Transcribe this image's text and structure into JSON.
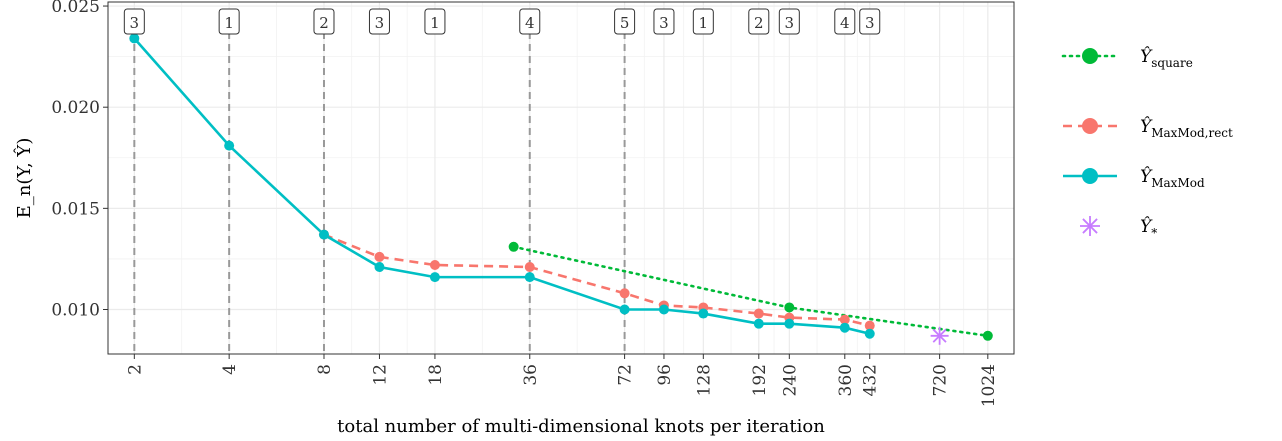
{
  "chart_data": {
    "type": "line",
    "xlabel": "total number of multi-dimensional knots per iteration",
    "ylabel": "E_n(Y, Ŷ)",
    "x_scale": "log",
    "x_ticks": [
      2,
      4,
      8,
      12,
      18,
      36,
      72,
      96,
      128,
      192,
      240,
      360,
      432,
      720,
      1024
    ],
    "ylim": [
      0.0078,
      0.0252
    ],
    "y_ticks": [
      0.01,
      0.015,
      0.02,
      0.025
    ],
    "y_tick_labels": [
      "0.010",
      "0.015",
      "0.020",
      "0.025"
    ],
    "grid": true,
    "legend_position": "right",
    "vlines": [
      2,
      4,
      8,
      36,
      72
    ],
    "box_annotations": [
      {
        "x": 2,
        "label": "3"
      },
      {
        "x": 4,
        "label": "1"
      },
      {
        "x": 8,
        "label": "2"
      },
      {
        "x": 12,
        "label": "3"
      },
      {
        "x": 18,
        "label": "1"
      },
      {
        "x": 36,
        "label": "4"
      },
      {
        "x": 72,
        "label": "5"
      },
      {
        "x": 96,
        "label": "3"
      },
      {
        "x": 128,
        "label": "1"
      },
      {
        "x": 192,
        "label": "2"
      },
      {
        "x": 240,
        "label": "3"
      },
      {
        "x": 360,
        "label": "4"
      },
      {
        "x": 432,
        "label": "3"
      }
    ],
    "series": [
      {
        "key": "square",
        "name_base": "Ŷ",
        "name_sub": "square",
        "color": "#00BA38",
        "line": "dotted",
        "x": [
          32,
          240,
          1024
        ],
        "y": [
          0.0131,
          0.0101,
          0.0087
        ]
      },
      {
        "key": "maxmod_rect",
        "name_base": "Ŷ",
        "name_sub": "MaxMod,rect",
        "color": "#F8766D",
        "line": "dashed",
        "x": [
          8,
          12,
          18,
          36,
          72,
          96,
          128,
          192,
          240,
          360,
          432
        ],
        "y": [
          0.0137,
          0.0126,
          0.0122,
          0.0121,
          0.0108,
          0.0102,
          0.0101,
          0.0098,
          0.0096,
          0.0095,
          0.0092
        ]
      },
      {
        "key": "maxmod",
        "name_base": "Ŷ",
        "name_sub": "MaxMod",
        "color": "#00BFC4",
        "line": "solid",
        "x": [
          2,
          4,
          8,
          12,
          18,
          36,
          72,
          96,
          128,
          192,
          240,
          360,
          432
        ],
        "y": [
          0.0234,
          0.0181,
          0.0137,
          0.0121,
          0.0116,
          0.0116,
          0.01,
          0.01,
          0.0098,
          0.0093,
          0.0093,
          0.0091,
          0.0088
        ]
      },
      {
        "key": "star",
        "name_base": "Ŷ",
        "name_sub": "*",
        "color": "#C77CFF",
        "line": "none",
        "marker": "asterisk",
        "x": [
          720
        ],
        "y": [
          0.0087
        ]
      }
    ]
  }
}
